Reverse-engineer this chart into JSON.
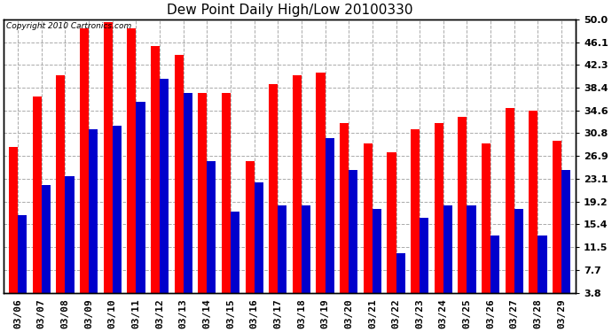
{
  "title": "Dew Point Daily High/Low 20100330",
  "copyright": "Copyright 2010 Cartronics.com",
  "dates": [
    "03/06",
    "03/07",
    "03/08",
    "03/09",
    "03/10",
    "03/11",
    "03/12",
    "03/13",
    "03/14",
    "03/15",
    "03/16",
    "03/17",
    "03/18",
    "03/19",
    "03/20",
    "03/21",
    "03/22",
    "03/23",
    "03/24",
    "03/25",
    "03/26",
    "03/27",
    "03/28",
    "03/29"
  ],
  "highs": [
    28.5,
    37.0,
    40.5,
    48.5,
    49.5,
    48.5,
    45.5,
    44.0,
    37.5,
    37.5,
    26.0,
    39.0,
    40.5,
    41.0,
    32.5,
    29.0,
    27.5,
    31.5,
    32.5,
    33.5,
    29.0,
    35.0,
    34.5,
    29.5
  ],
  "lows": [
    17.0,
    22.0,
    23.5,
    31.5,
    32.0,
    36.0,
    40.0,
    37.5,
    26.0,
    17.5,
    22.5,
    18.5,
    18.5,
    30.0,
    24.5,
    18.0,
    10.5,
    16.5,
    18.5,
    18.5,
    13.5,
    18.0,
    13.5,
    24.5
  ],
  "high_color": "#ff0000",
  "low_color": "#0000cc",
  "bg_color": "#ffffff",
  "plot_bg_color": "#ffffff",
  "grid_color": "#aaaaaa",
  "yticks": [
    3.8,
    7.7,
    11.5,
    15.4,
    19.2,
    23.1,
    26.9,
    30.8,
    34.6,
    38.4,
    42.3,
    46.1,
    50.0
  ],
  "ymin": 3.8,
  "ymax": 50.0,
  "title_fontsize": 11,
  "tick_fontsize": 8,
  "bar_width": 0.38
}
